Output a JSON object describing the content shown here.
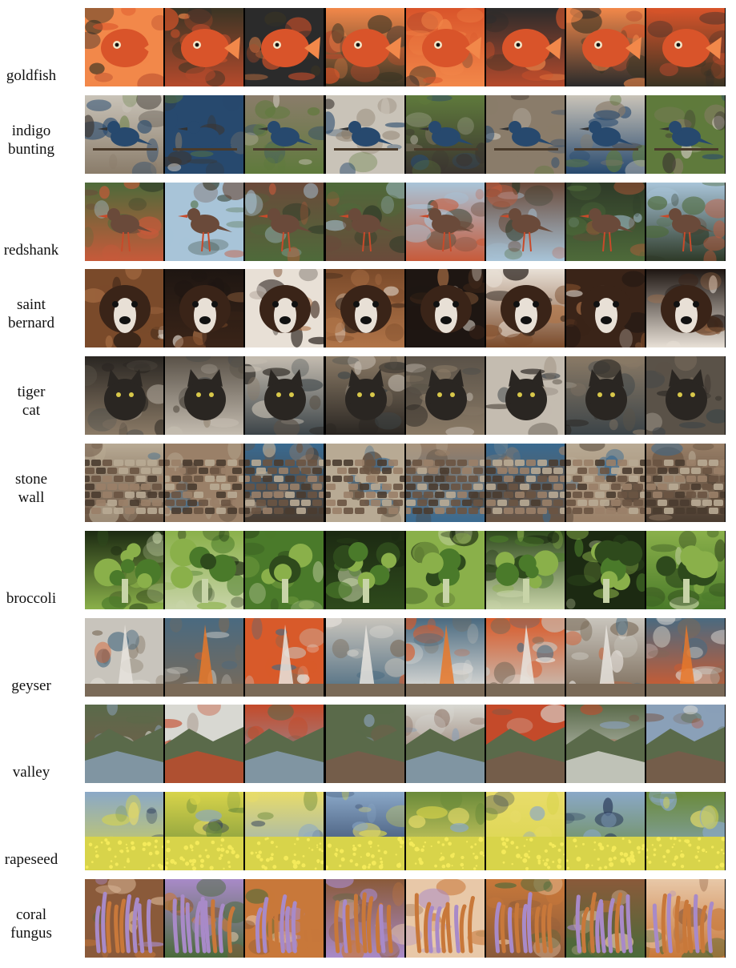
{
  "rows": [
    {
      "label": [
        "goldfish"
      ],
      "palette": [
        "#3a3424",
        "#d9542a",
        "#f2884a",
        "#b54a2c",
        "#2b2b2b"
      ],
      "subject": "fish"
    },
    {
      "label": [
        "indigo",
        "bunting"
      ],
      "palette": [
        "#8a7c6a",
        "#27496e",
        "#5f7a3c",
        "#c9c3b8",
        "#3b3530"
      ],
      "subject": "bird"
    },
    {
      "label": [
        "redshank"
      ],
      "palette": [
        "#2e3a28",
        "#6a4a3a",
        "#c75a3a",
        "#a8c4d8",
        "#4e6a3a"
      ],
      "subject": "wader"
    },
    {
      "label": [
        "saint",
        "bernard"
      ],
      "palette": [
        "#7a4a2a",
        "#3a2418",
        "#e8e0d6",
        "#b07448",
        "#1e1612"
      ],
      "subject": "dog"
    },
    {
      "label": [
        "tiger",
        "cat"
      ],
      "palette": [
        "#5a5248",
        "#2a2622",
        "#8a7a66",
        "#c4bcb0",
        "#3c4448"
      ],
      "subject": "cat"
    },
    {
      "label": [
        "stone",
        "wall"
      ],
      "palette": [
        "#6a5442",
        "#9a8068",
        "#4a3c30",
        "#b8aa94",
        "#3a6a90"
      ],
      "subject": "wall"
    },
    {
      "label": [
        "broccoli"
      ],
      "palette": [
        "#4a7a2a",
        "#2e4a1c",
        "#8ab04a",
        "#c8d4a8",
        "#1c2a12"
      ],
      "subject": "plant"
    },
    {
      "label": [
        "geyser"
      ],
      "palette": [
        "#c8c4bc",
        "#7a6a58",
        "#d85a2a",
        "#4a6a80",
        "#e8e4de"
      ],
      "subject": "plume"
    },
    {
      "label": [
        "valley"
      ],
      "palette": [
        "#8aa0b8",
        "#5a6a4a",
        "#7a5a4a",
        "#c44a2a",
        "#d8d8d2"
      ],
      "subject": "land"
    },
    {
      "label": [
        "rapeseed"
      ],
      "palette": [
        "#d8d44a",
        "#6a8a3a",
        "#8aa8c8",
        "#2a3a5a",
        "#e8dc6a"
      ],
      "subject": "field"
    },
    {
      "label": [
        "coral",
        "fungus"
      ],
      "palette": [
        "#c8783a",
        "#a88ac8",
        "#e8c8a8",
        "#8a5a3a",
        "#4a6a3a"
      ],
      "subject": "coral"
    }
  ]
}
